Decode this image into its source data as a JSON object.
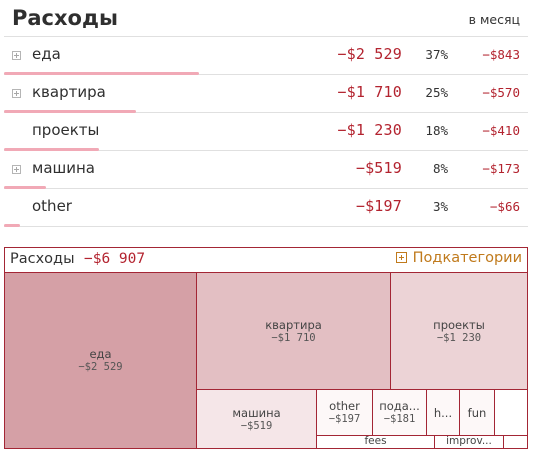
{
  "header": {
    "title": "Расходы",
    "period": "в месяц"
  },
  "rows": [
    {
      "label": "еда",
      "amount": "−$2 529",
      "percent": "37%",
      "monthly": "−$843",
      "expandable": true,
      "share": 0.37
    },
    {
      "label": "квартира",
      "amount": "−$1 710",
      "percent": "25%",
      "monthly": "−$570",
      "expandable": true,
      "share": 0.25
    },
    {
      "label": "проекты",
      "amount": "−$1 230",
      "percent": "18%",
      "monthly": "−$410",
      "expandable": false,
      "share": 0.18
    },
    {
      "label": "машина",
      "amount": "−$519",
      "percent": "8%",
      "monthly": "−$173",
      "expandable": true,
      "share": 0.08
    },
    {
      "label": "other",
      "amount": "−$197",
      "percent": "3%",
      "monthly": "−$66",
      "expandable": false,
      "share": 0.03
    }
  ],
  "treemap": {
    "title": "Расходы",
    "total": "−$6 907",
    "subcategories_label": "Подкатегории",
    "cells": {
      "eda": {
        "name": "еда",
        "amount": "−$2 529"
      },
      "kvartira": {
        "name": "квартира",
        "amount": "−$1 710"
      },
      "proekty": {
        "name": "проекты",
        "amount": "−$1 230"
      },
      "mashina": {
        "name": "машина",
        "amount": "−$519"
      },
      "other": {
        "name": "other",
        "amount": "−$197"
      },
      "poda": {
        "name": "пода...",
        "amount": "−$181"
      },
      "h": {
        "name": "h..."
      },
      "fun": {
        "name": "fun"
      },
      "fees": {
        "name": "fees"
      },
      "improv": {
        "name": "improv..."
      }
    }
  },
  "colors": {
    "accent_red": "#b3232f",
    "border_red": "#a32635",
    "bar_pink": "#f1a9b6",
    "button_orange": "#c07a1c",
    "cell_dark": "#d5a0a6",
    "cell_mid": "#e3bfc3",
    "cell_light": "#ecd3d6",
    "cell_lightest": "#f5e6e8",
    "cell_white": "#fdf8f8"
  }
}
